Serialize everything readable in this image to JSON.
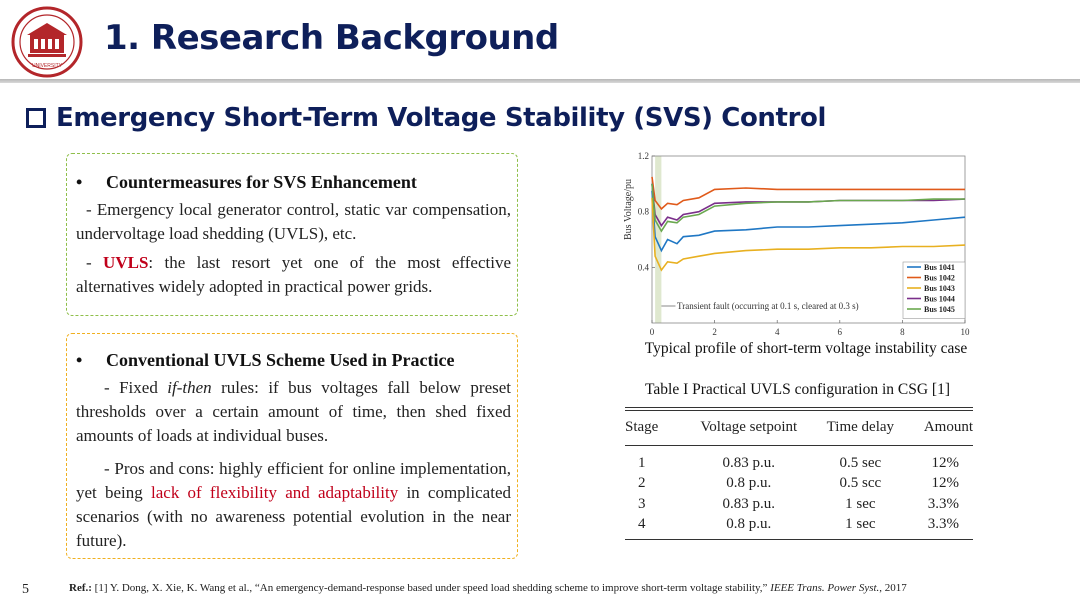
{
  "header": {
    "title": "1. Research Background",
    "logo_text": "UNIVERSITY"
  },
  "section": {
    "subtitle": "Emergency Short-Term Voltage Stability (SVS) Control"
  },
  "panel1": {
    "heading": "Countermeasures for SVS Enhancement",
    "item1": "- Emergency local generator control, static var compensation, undervoltage load shedding (UVLS), etc.",
    "item2_prefix": "-",
    "item2_highlight": "UVLS",
    "item2_rest": ": the last resort yet one of the most effective alternatives widely adopted in practical power grids."
  },
  "panel2": {
    "heading": "Conventional UVLS Scheme Used in Practice",
    "item1_a": "- Fixed ",
    "item1_italic": "if-then",
    "item1_b": " rules: if bus voltages fall below preset thresholds over a certain amount of time, then shed fixed amounts of loads at individual buses.",
    "item2_a": "- Pros and cons: highly efficient for online implementation, yet being ",
    "item2_red": "lack of flexibility and adaptability",
    "item2_b": " in complicated scenarios (with no awareness potential evolution in the near future)."
  },
  "chart_caption": "Typical profile of short-term voltage instability case",
  "table": {
    "caption": "Table I Practical UVLS configuration in CSG [1]",
    "headers": [
      "Stage",
      "Voltage setpoint",
      "Time delay",
      "Amount"
    ],
    "rows": [
      [
        "1",
        "0.83 p.u.",
        "0.5 sec",
        "12%"
      ],
      [
        "2",
        "0.8 p.u.",
        "0.5 scc",
        "12%"
      ],
      [
        "3",
        "0.83 p.u.",
        "1 sec",
        "3.3%"
      ],
      [
        "4",
        "0.8 p.u.",
        "1 sec",
        "3.3%"
      ]
    ]
  },
  "footer": {
    "page_number": "5",
    "ref_label": "Ref.:",
    "ref_text": " [1] Y. Dong, X. Xie, K. Wang et al., “An emergency-demand-response based under speed load shedding scheme to improve short-term voltage stability,” ",
    "ref_journal": "IEEE Trans. Power Syst.",
    "ref_year": ", 2017"
  },
  "chart_data": {
    "type": "line",
    "xlabel": "",
    "ylabel": "Bus Voltage/pu",
    "xlim": [
      0,
      10
    ],
    "ylim": [
      0,
      1.2
    ],
    "xticks": [
      "0",
      "2",
      "4",
      "6",
      "8",
      "10"
    ],
    "yticks": [
      "0.4",
      "0.8",
      "1.2"
    ],
    "annotation": "Transient fault (occurring at 0.1 s, cleared at 0.3 s)",
    "legend_position": "lower-right",
    "series": [
      {
        "name": "Bus 1041",
        "color": "#1f77c4",
        "x": [
          0,
          0.1,
          0.3,
          0.5,
          0.8,
          1.0,
          1.5,
          2.0,
          3.0,
          4.0,
          5.0,
          6.0,
          7.0,
          8.0,
          9.0,
          10.0
        ],
        "y": [
          0.95,
          0.62,
          0.52,
          0.6,
          0.57,
          0.62,
          0.63,
          0.66,
          0.67,
          0.69,
          0.69,
          0.7,
          0.71,
          0.72,
          0.74,
          0.76
        ]
      },
      {
        "name": "Bus 1042",
        "color": "#e05a1a",
        "x": [
          0,
          0.1,
          0.3,
          0.5,
          0.8,
          1.0,
          1.5,
          2.0,
          3.0,
          4.0,
          5.0,
          6.0,
          7.0,
          8.0,
          9.0,
          10.0
        ],
        "y": [
          1.05,
          0.88,
          0.82,
          0.86,
          0.85,
          0.88,
          0.9,
          0.96,
          0.97,
          0.96,
          0.96,
          0.96,
          0.96,
          0.96,
          0.96,
          0.96
        ]
      },
      {
        "name": "Bus 1043",
        "color": "#e8b020",
        "x": [
          0,
          0.1,
          0.3,
          0.5,
          0.8,
          1.0,
          1.5,
          2.0,
          3.0,
          4.0,
          5.0,
          6.0,
          7.0,
          8.0,
          9.0,
          10.0
        ],
        "y": [
          0.9,
          0.48,
          0.38,
          0.44,
          0.43,
          0.46,
          0.48,
          0.5,
          0.52,
          0.53,
          0.53,
          0.54,
          0.54,
          0.55,
          0.55,
          0.56
        ]
      },
      {
        "name": "Bus 1044",
        "color": "#7a2f8a",
        "x": [
          0,
          0.1,
          0.3,
          0.5,
          0.8,
          1.0,
          1.5,
          2.0,
          3.0,
          4.0,
          5.0,
          6.0,
          7.0,
          8.0,
          9.0,
          10.0
        ],
        "y": [
          1.0,
          0.78,
          0.7,
          0.76,
          0.74,
          0.78,
          0.8,
          0.86,
          0.87,
          0.87,
          0.87,
          0.88,
          0.88,
          0.88,
          0.88,
          0.89
        ]
      },
      {
        "name": "Bus 1045",
        "color": "#6aa84f",
        "x": [
          0,
          0.1,
          0.3,
          0.5,
          0.8,
          1.0,
          1.5,
          2.0,
          3.0,
          4.0,
          5.0,
          6.0,
          7.0,
          8.0,
          9.0,
          10.0
        ],
        "y": [
          1.0,
          0.74,
          0.66,
          0.73,
          0.72,
          0.76,
          0.78,
          0.84,
          0.86,
          0.87,
          0.87,
          0.88,
          0.88,
          0.88,
          0.89,
          0.89
        ]
      }
    ]
  },
  "colors": {
    "title": "#0e1f5a",
    "logo_red": "#b3262a",
    "highlight_red": "#c0001a",
    "green_border": "#8fbf4a",
    "orange_border": "#f0b020"
  }
}
